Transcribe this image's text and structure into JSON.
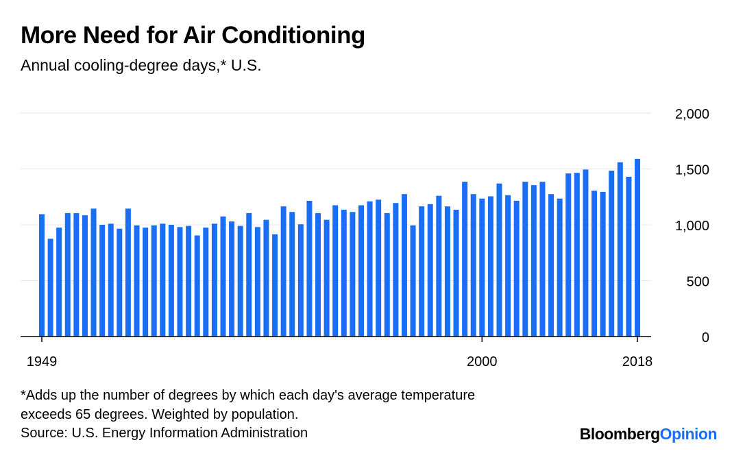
{
  "chart_data": {
    "type": "bar",
    "title": "More Need for Air Conditioning",
    "subtitle": "Annual cooling-degree days,* U.S.",
    "xlabel": "",
    "ylabel": "",
    "ylim": [
      0,
      2000
    ],
    "y_ticks": [
      0,
      500,
      1000,
      1500,
      2000
    ],
    "y_tick_labels": [
      "0",
      "500",
      "1,000",
      "1,500",
      "2,000"
    ],
    "x_tick_labels": [
      "1949",
      "2000",
      "2018"
    ],
    "x_ticks": [
      1949,
      2000,
      2018
    ],
    "grid": true,
    "y_axis_side": "right",
    "bar_color": "#1a6ef5",
    "x": [
      1949,
      1950,
      1951,
      1952,
      1953,
      1954,
      1955,
      1956,
      1957,
      1958,
      1959,
      1960,
      1961,
      1962,
      1963,
      1964,
      1965,
      1966,
      1967,
      1968,
      1969,
      1970,
      1971,
      1972,
      1973,
      1974,
      1975,
      1976,
      1977,
      1978,
      1979,
      1980,
      1981,
      1982,
      1983,
      1984,
      1985,
      1986,
      1987,
      1988,
      1989,
      1990,
      1991,
      1992,
      1993,
      1994,
      1995,
      1996,
      1997,
      1998,
      1999,
      2000,
      2001,
      2002,
      2003,
      2004,
      2005,
      2006,
      2007,
      2008,
      2009,
      2010,
      2011,
      2012,
      2013,
      2014,
      2015,
      2016,
      2017,
      2018
    ],
    "values": [
      1095,
      875,
      975,
      1105,
      1105,
      1085,
      1145,
      1000,
      1010,
      965,
      1145,
      995,
      975,
      995,
      1010,
      1000,
      980,
      990,
      905,
      975,
      1010,
      1075,
      1030,
      990,
      1105,
      980,
      1045,
      915,
      1165,
      1115,
      1005,
      1215,
      1105,
      1045,
      1175,
      1135,
      1115,
      1175,
      1210,
      1225,
      1105,
      1195,
      1275,
      995,
      1165,
      1185,
      1260,
      1165,
      1135,
      1385,
      1275,
      1235,
      1255,
      1370,
      1265,
      1215,
      1385,
      1355,
      1385,
      1275,
      1235,
      1460,
      1465,
      1495,
      1305,
      1295,
      1485,
      1560,
      1430,
      1590
    ]
  },
  "footnote_line1": "*Adds up the number of degrees by which each day's average temperature",
  "footnote_line2": "exceeds 65 degrees. Weighted by population.",
  "source": "Source: U.S. Energy Information Administration",
  "logo": {
    "brand": "Bloomberg",
    "section": "Opinion"
  }
}
